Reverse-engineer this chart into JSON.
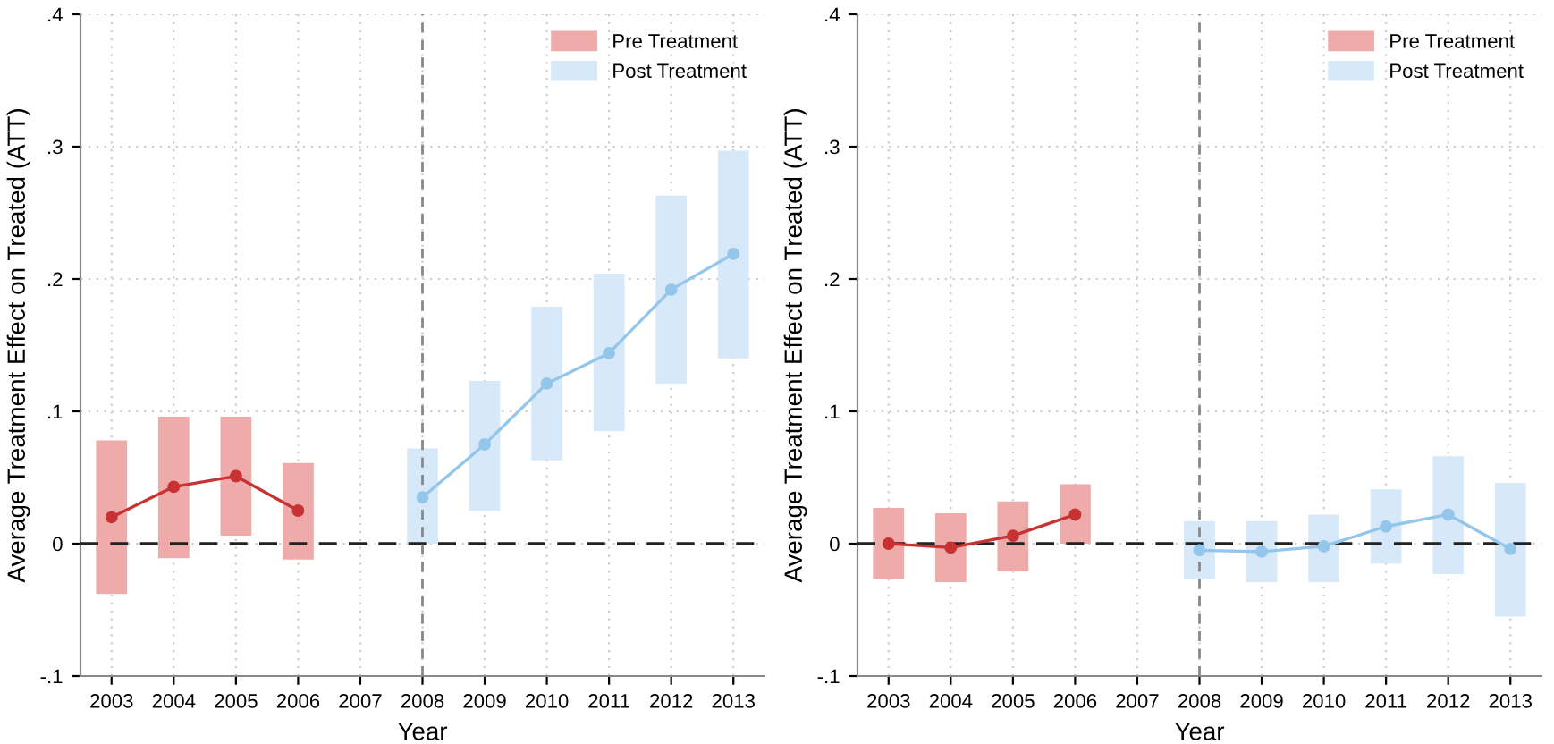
{
  "chart_data": [
    {
      "type": "bar",
      "xlabel": "Year",
      "ylabel": "Average Treatment Effect on Treated (ATT)",
      "categories": [
        "2003",
        "2004",
        "2005",
        "2006",
        "2007",
        "2008",
        "2009",
        "2010",
        "2011",
        "2012",
        "2013"
      ],
      "ylim": [
        -0.1,
        0.4
      ],
      "yticks": [
        {
          "value": -0.1,
          "label": "-.1"
        },
        0,
        {
          "value": 0.1,
          "label": ".1"
        },
        {
          "value": 0.2,
          "label": ".2"
        },
        {
          "value": 0.3,
          "label": ".3"
        },
        {
          "value": 0.4,
          "label": ".4"
        }
      ],
      "grid": true,
      "legend": "top right",
      "series": [
        {
          "name": "Pre Treatment",
          "color": "#efaaaa",
          "base": [
            -0.038,
            -0.011,
            0.006,
            -0.012,
            null,
            null,
            null,
            null,
            null,
            null,
            null
          ],
          "values": [
            0.116,
            0.107,
            0.09,
            0.073,
            null,
            null,
            null,
            null,
            null,
            null,
            null
          ]
        },
        {
          "name": "Post Treatment",
          "color": "#d7e9f8",
          "base": [
            null,
            null,
            null,
            null,
            null,
            0,
            0.025,
            0.063,
            0.085,
            0.121,
            0.14
          ],
          "values": [
            null,
            null,
            null,
            null,
            null,
            0.072,
            0.098,
            0.116,
            0.119,
            0.142,
            0.157
          ]
        },
        {
          "type": "line",
          "color": "#c83232",
          "marker": "circle",
          "values": [
            0.02,
            0.043,
            0.051,
            0.025,
            null,
            null,
            null,
            null,
            null,
            null,
            null
          ]
        },
        {
          "type": "line",
          "color": "#93c6ea",
          "marker": "circle",
          "values": [
            null,
            null,
            null,
            null,
            null,
            0.035,
            0.075,
            0.121,
            0.144,
            0.192,
            0.219
          ]
        }
      ],
      "ref_lines": [
        {
          "axis": "y",
          "value": 0,
          "color": "#222222",
          "line_style": "dashed"
        },
        {
          "axis": "x",
          "value": "2008",
          "color": "#888888",
          "line_style": "dashed"
        }
      ]
    },
    {
      "type": "bar",
      "xlabel": "Year",
      "ylabel": "Average Treatment Effect on Treated (ATT)",
      "categories": [
        "2003",
        "2004",
        "2005",
        "2006",
        "2007",
        "2008",
        "2009",
        "2010",
        "2011",
        "2012",
        "2013"
      ],
      "ylim": [
        -0.1,
        0.4
      ],
      "yticks": [
        {
          "value": -0.1,
          "label": "-.1"
        },
        0,
        {
          "value": 0.1,
          "label": ".1"
        },
        {
          "value": 0.2,
          "label": ".2"
        },
        {
          "value": 0.3,
          "label": ".3"
        },
        {
          "value": 0.4,
          "label": ".4"
        }
      ],
      "grid": true,
      "legend": "top right",
      "series": [
        {
          "name": "Pre Treatment",
          "color": "#efaaaa",
          "base": [
            -0.027,
            -0.029,
            -0.021,
            0,
            null,
            null,
            null,
            null,
            null,
            null,
            null
          ],
          "values": [
            0.054,
            0.052,
            0.053,
            0.045,
            null,
            null,
            null,
            null,
            null,
            null,
            null
          ]
        },
        {
          "name": "Post Treatment",
          "color": "#d7e9f8",
          "base": [
            null,
            null,
            null,
            null,
            null,
            -0.027,
            -0.029,
            -0.029,
            -0.015,
            -0.023,
            -0.055
          ],
          "values": [
            null,
            null,
            null,
            null,
            null,
            0.044,
            0.046,
            0.051,
            0.056,
            0.089,
            0.101
          ]
        },
        {
          "type": "line",
          "color": "#c83232",
          "marker": "circle",
          "values": [
            0,
            -0.003,
            0.006,
            0.022,
            null,
            null,
            null,
            null,
            null,
            null,
            null
          ]
        },
        {
          "type": "line",
          "color": "#93c6ea",
          "marker": "circle",
          "values": [
            null,
            null,
            null,
            null,
            null,
            -0.005,
            -0.006,
            -0.002,
            0.013,
            0.022,
            -0.004
          ]
        }
      ],
      "ref_lines": [
        {
          "axis": "y",
          "value": 0,
          "color": "#222222",
          "line_style": "dashed"
        },
        {
          "axis": "x",
          "value": "2008",
          "color": "#888888",
          "line_style": "dashed"
        }
      ]
    }
  ]
}
